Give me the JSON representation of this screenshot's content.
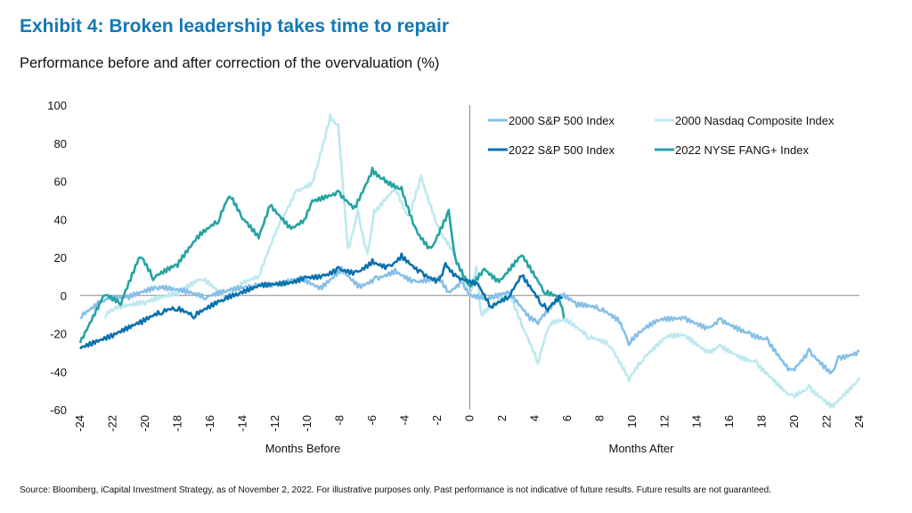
{
  "title": "Exhibit 4: Broken leadership takes time to repair",
  "subtitle": "Performance before and after correction of the overvaluation (%)",
  "source": "Source: Bloomberg, iCapital Investment Strategy, as of November 2, 2022. For illustrative purposes only. Past performance is not indicative of future results. Future results are not guaranteed.",
  "chart_data": {
    "type": "line",
    "xlabel_left": "Months Before",
    "xlabel_right": "Months After",
    "ylabel": "",
    "xlim": [
      -24,
      24
    ],
    "ylim": [
      -60,
      100
    ],
    "xticks": [
      -24,
      -22,
      -20,
      -18,
      -16,
      -14,
      -12,
      -10,
      -8,
      -6,
      -4,
      -2,
      0,
      2,
      4,
      6,
      8,
      10,
      12,
      14,
      16,
      18,
      20,
      22,
      24
    ],
    "yticks": [
      -60,
      -40,
      -20,
      0,
      20,
      40,
      60,
      80,
      100
    ],
    "grid": false,
    "legend_position": "top-right",
    "series": [
      {
        "name": "2000 S&P 500 Index",
        "color": "#86c0e8",
        "points": [
          [
            -24,
            -12
          ],
          [
            -22.5,
            -3
          ],
          [
            -21,
            -2
          ],
          [
            -19.2,
            3
          ],
          [
            -17.5,
            1
          ],
          [
            -16.3,
            -2
          ],
          [
            -15,
            2
          ],
          [
            -13.4,
            5
          ],
          [
            -12,
            6
          ],
          [
            -10.4,
            10
          ],
          [
            -9.2,
            5
          ],
          [
            -7.9,
            15
          ],
          [
            -6.8,
            6
          ],
          [
            -5.8,
            10
          ],
          [
            -4.6,
            14
          ],
          [
            -3.4,
            8
          ],
          [
            -1.9,
            10
          ],
          [
            -1.3,
            2
          ],
          [
            -0.5,
            7
          ],
          [
            0,
            0
          ],
          [
            1.1,
            -2
          ],
          [
            2.4,
            1
          ],
          [
            3.7,
            -13
          ],
          [
            4.2,
            -15
          ],
          [
            5.7,
            -1
          ],
          [
            6.6,
            -6
          ],
          [
            8,
            -8
          ],
          [
            9.2,
            -14.5
          ],
          [
            9.8,
            -26
          ],
          [
            10.6,
            -19
          ],
          [
            11.7,
            -13
          ],
          [
            13.2,
            -12
          ],
          [
            14.7,
            -17
          ],
          [
            15.4,
            -12
          ],
          [
            17.2,
            -19
          ],
          [
            18.3,
            -22
          ],
          [
            19.8,
            -39
          ],
          [
            20.9,
            -28
          ],
          [
            22.3,
            -40
          ],
          [
            22.7,
            -32
          ],
          [
            24,
            -29
          ]
        ]
      },
      {
        "name": "2000 Nasdaq Composite Index",
        "color": "#bde9ef",
        "points": [
          [
            -22.5,
            -12
          ],
          [
            -22,
            -8
          ],
          [
            -20,
            -5
          ],
          [
            -18,
            0
          ],
          [
            -16.5,
            8
          ],
          [
            -15,
            -2
          ],
          [
            -14,
            6
          ],
          [
            -13,
            10
          ],
          [
            -11.9,
            35
          ],
          [
            -10.7,
            55
          ],
          [
            -9.7,
            60
          ],
          [
            -9.2,
            75
          ],
          [
            -8.6,
            95
          ],
          [
            -8.1,
            90
          ],
          [
            -7.5,
            25
          ],
          [
            -6.9,
            45
          ],
          [
            -6.3,
            22
          ],
          [
            -5.9,
            45
          ],
          [
            -4.6,
            58
          ],
          [
            -3.8,
            42
          ],
          [
            -3,
            63
          ],
          [
            -1.9,
            35
          ],
          [
            -1.1,
            25
          ],
          [
            0,
            0
          ],
          [
            0.4,
            15
          ],
          [
            0.7,
            -10
          ],
          [
            2.4,
            1
          ],
          [
            3.3,
            -18
          ],
          [
            4.2,
            -36
          ],
          [
            4.9,
            -16
          ],
          [
            5.9,
            -14
          ],
          [
            7.3,
            -23
          ],
          [
            8.6,
            -27
          ],
          [
            9.8,
            -45
          ],
          [
            10.6,
            -35
          ],
          [
            12.1,
            -22
          ],
          [
            13.2,
            -21
          ],
          [
            14.7,
            -30
          ],
          [
            15.4,
            -26
          ],
          [
            16.8,
            -32
          ],
          [
            17.6,
            -34
          ],
          [
            19.8,
            -52
          ],
          [
            20.9,
            -47
          ],
          [
            22.3,
            -57
          ],
          [
            24,
            -43
          ]
        ]
      },
      {
        "name": "2022 S&P 500 Index",
        "color": "#0a72ab",
        "points": [
          [
            -24,
            -28
          ],
          [
            -22,
            -22
          ],
          [
            -20.2,
            -15
          ],
          [
            -19,
            -10
          ],
          [
            -18.1,
            -8
          ],
          [
            -17,
            -12
          ],
          [
            -15.2,
            -3
          ],
          [
            -14.3,
            0
          ],
          [
            -12.9,
            5
          ],
          [
            -11,
            7
          ],
          [
            -10.1,
            10
          ],
          [
            -9,
            11
          ],
          [
            -8.1,
            15
          ],
          [
            -7,
            13
          ],
          [
            -6,
            19
          ],
          [
            -5,
            16
          ],
          [
            -4.2,
            22
          ],
          [
            -3,
            13
          ],
          [
            -1.9,
            8
          ],
          [
            -1.5,
            17
          ],
          [
            -0.8,
            10
          ],
          [
            0,
            8
          ],
          [
            0.5,
            6
          ],
          [
            1.3,
            -6
          ],
          [
            2.4,
            -1
          ],
          [
            3.2,
            10
          ],
          [
            4.4,
            -5
          ],
          [
            4.8,
            -8
          ],
          [
            5.7,
            -1
          ]
        ]
      },
      {
        "name": "2022 NYSE FANG+ Index",
        "color": "#27a3a3",
        "points": [
          [
            -24,
            -25
          ],
          [
            -22.5,
            0
          ],
          [
            -21.5,
            -5
          ],
          [
            -20.3,
            20
          ],
          [
            -19.5,
            8
          ],
          [
            -18,
            15
          ],
          [
            -16.7,
            30
          ],
          [
            -15.5,
            38
          ],
          [
            -14.8,
            52
          ],
          [
            -14,
            40
          ],
          [
            -13,
            30
          ],
          [
            -12.3,
            47
          ],
          [
            -11,
            35
          ],
          [
            -10.2,
            40
          ],
          [
            -9.7,
            50
          ],
          [
            -8.1,
            55
          ],
          [
            -7.1,
            47
          ],
          [
            -6,
            67
          ],
          [
            -5.3,
            62
          ],
          [
            -4.2,
            57
          ],
          [
            -3.3,
            35
          ],
          [
            -2.4,
            25
          ],
          [
            -1.3,
            45
          ],
          [
            -0.9,
            20
          ],
          [
            0,
            5
          ],
          [
            0.9,
            14
          ],
          [
            1.8,
            7
          ],
          [
            3.2,
            21
          ],
          [
            4.6,
            1
          ],
          [
            5.5,
            -2
          ],
          [
            5.8,
            -12
          ]
        ]
      }
    ]
  }
}
